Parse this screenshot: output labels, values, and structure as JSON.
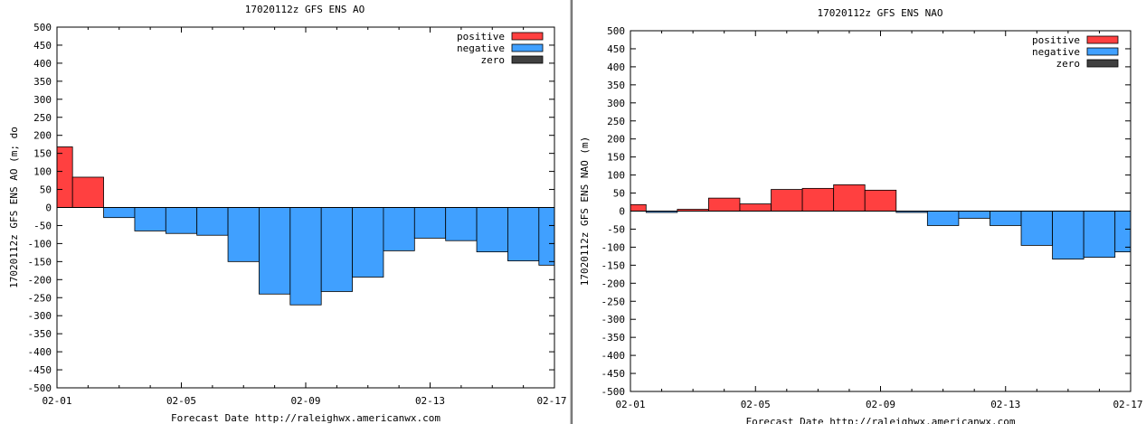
{
  "colors": {
    "positive": "#ff4040",
    "negative": "#40a0ff",
    "zero": "#404040",
    "frame": "#000000",
    "background": "#ffffff"
  },
  "chart_data": [
    {
      "type": "bar",
      "title": "17020112z GFS ENS AO",
      "xlabel": "Forecast Date http://raleighwx.americanwx.com",
      "ylabel": "17020112z GFS ENS AO (m; do",
      "ylim": [
        -500,
        500
      ],
      "yticks": [
        "500",
        "450",
        "400",
        "350",
        "300",
        "250",
        "200",
        "150",
        "100",
        "50",
        "0",
        "-50",
        "-100",
        "-150",
        "-200",
        "-250",
        "-300",
        "-350",
        "-400",
        "-450",
        "-500"
      ],
      "xtick_labels": [
        "02-01",
        "02-05",
        "02-09",
        "02-13",
        "02-17"
      ],
      "xrange_days": [
        0,
        16
      ],
      "legend": [
        "positive",
        "negative",
        "zero"
      ],
      "legend_position": "top-right",
      "bars": [
        {
          "start": 0.0,
          "end": 0.5,
          "value": 168
        },
        {
          "start": 0.5,
          "end": 1.5,
          "value": 84
        },
        {
          "start": 1.5,
          "end": 2.5,
          "value": -28
        },
        {
          "start": 2.5,
          "end": 3.5,
          "value": -65
        },
        {
          "start": 3.5,
          "end": 4.5,
          "value": -72
        },
        {
          "start": 4.5,
          "end": 5.5,
          "value": -77
        },
        {
          "start": 5.5,
          "end": 6.5,
          "value": -150
        },
        {
          "start": 6.5,
          "end": 7.5,
          "value": -240
        },
        {
          "start": 7.5,
          "end": 8.5,
          "value": -270
        },
        {
          "start": 8.5,
          "end": 9.5,
          "value": -233
        },
        {
          "start": 9.5,
          "end": 10.5,
          "value": -193
        },
        {
          "start": 10.5,
          "end": 11.5,
          "value": -120
        },
        {
          "start": 11.5,
          "end": 12.5,
          "value": -85
        },
        {
          "start": 12.5,
          "end": 13.5,
          "value": -92
        },
        {
          "start": 13.5,
          "end": 14.5,
          "value": -123
        },
        {
          "start": 14.5,
          "end": 15.5,
          "value": -148
        },
        {
          "start": 15.5,
          "end": 16.0,
          "value": -160
        }
      ]
    },
    {
      "type": "bar",
      "title": "17020112z GFS ENS NAO",
      "xlabel": "Forecast Date http://raleighwx.americanwx.com",
      "ylabel": "17020112z GFS ENS NAO (m)",
      "ylim": [
        -500,
        500
      ],
      "yticks": [
        "500",
        "450",
        "400",
        "350",
        "300",
        "250",
        "200",
        "150",
        "100",
        "50",
        "0",
        "-50",
        "-100",
        "-150",
        "-200",
        "-250",
        "-300",
        "-350",
        "-400",
        "-450",
        "-500"
      ],
      "xtick_labels": [
        "02-01",
        "02-05",
        "02-09",
        "02-13",
        "02-17"
      ],
      "xrange_days": [
        0,
        16
      ],
      "legend": [
        "positive",
        "negative",
        "zero"
      ],
      "legend_position": "top-right",
      "bars": [
        {
          "start": 0.0,
          "end": 0.5,
          "value": 18
        },
        {
          "start": 0.5,
          "end": 1.5,
          "value": -2
        },
        {
          "start": 1.5,
          "end": 2.5,
          "value": 5
        },
        {
          "start": 2.5,
          "end": 3.5,
          "value": 36
        },
        {
          "start": 3.5,
          "end": 4.5,
          "value": 20
        },
        {
          "start": 4.5,
          "end": 5.5,
          "value": 60
        },
        {
          "start": 5.5,
          "end": 6.5,
          "value": 63
        },
        {
          "start": 6.5,
          "end": 7.5,
          "value": 73
        },
        {
          "start": 7.5,
          "end": 8.5,
          "value": 58
        },
        {
          "start": 8.5,
          "end": 9.5,
          "value": -2
        },
        {
          "start": 9.5,
          "end": 10.5,
          "value": -40
        },
        {
          "start": 10.5,
          "end": 11.5,
          "value": -20
        },
        {
          "start": 11.5,
          "end": 12.5,
          "value": -40
        },
        {
          "start": 12.5,
          "end": 13.5,
          "value": -95
        },
        {
          "start": 13.5,
          "end": 14.5,
          "value": -133
        },
        {
          "start": 14.5,
          "end": 15.5,
          "value": -128
        },
        {
          "start": 15.5,
          "end": 16.0,
          "value": -113
        }
      ]
    }
  ]
}
